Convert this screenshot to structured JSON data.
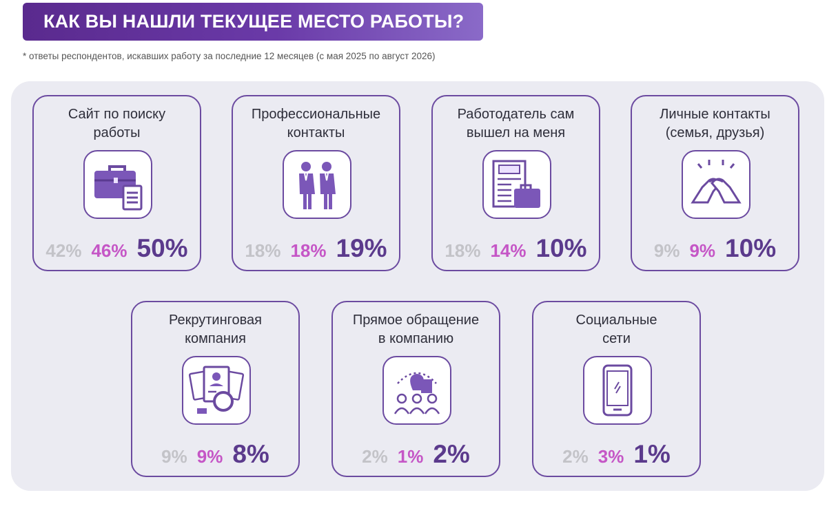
{
  "title": "КАК ВЫ НАШЛИ ТЕКУЩЕЕ МЕСТО РАБОТЫ?",
  "footnote": "*   ответы респондентов, искавших работу за последние 12 месяцев (с мая 2025 по август 2026)",
  "colors": {
    "first": "#c3c3c8",
    "second": "#c556c6",
    "third": "#5b3a8c",
    "border": "#6b4aa0"
  },
  "chart_data": {
    "type": "table",
    "title": "КАК ВЫ НАШЛИ ТЕКУЩЕЕ МЕСТО РАБОТЫ?",
    "categories": [
      "Сайт по поиску работы",
      "Профессиональные контакты",
      "Работодатель сам вышел на меня",
      "Личные контакты (семья, друзья)",
      "Рекрутинговая компания",
      "Прямое обращение в компанию",
      "Социальные сети"
    ],
    "series": [
      {
        "values": [
          42,
          18,
          18,
          9,
          9,
          2,
          2
        ]
      },
      {
        "values": [
          46,
          18,
          14,
          9,
          9,
          1,
          3
        ]
      },
      {
        "values": [
          50,
          19,
          10,
          10,
          8,
          2,
          1
        ]
      }
    ],
    "unit": "%"
  },
  "cards": [
    {
      "title": "Сайт по поиску\nработы",
      "icon": "briefcase-document-icon",
      "p1": "42%",
      "p2": "46%",
      "p3": "50%"
    },
    {
      "title": "Профессиональные\nконтакты",
      "icon": "business-people-icon",
      "p1": "18%",
      "p2": "18%",
      "p3": "19%"
    },
    {
      "title": "Работодатель сам\nвышел на меня",
      "icon": "job-newspaper-icon",
      "p1": "18%",
      "p2": "14%",
      "p3": "10%"
    },
    {
      "title": "Личные контакты\n(семья, друзья)",
      "icon": "handshake-icon",
      "p1": "9%",
      "p2": "9%",
      "p3": "10%"
    },
    {
      "title": "Рекрутинговая\nкомпания",
      "icon": "resume-magnifier-icon",
      "p1": "9%",
      "p2": "9%",
      "p3": "8%"
    },
    {
      "title": "Прямое обращение\nв компанию",
      "icon": "office-people-icon",
      "p1": "2%",
      "p2": "1%",
      "p3": "2%"
    },
    {
      "title": "Социальные\nсети",
      "icon": "smartphone-icon",
      "p1": "2%",
      "p2": "3%",
      "p3": "1%"
    }
  ]
}
